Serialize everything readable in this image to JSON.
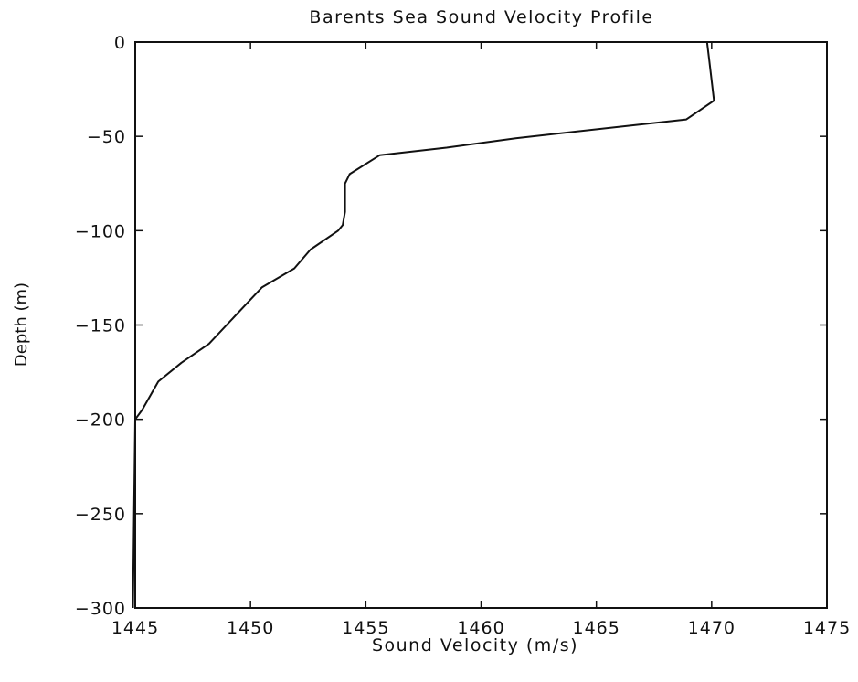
{
  "chart_data": {
    "type": "line",
    "title": "Barents Sea Sound Velocity Profile",
    "xlabel": "Sound Velocity (m/s)",
    "ylabel": "Depth (m)",
    "xlim": [
      1445,
      1475
    ],
    "ylim": [
      -300,
      0
    ],
    "x_ticks": [
      1445,
      1450,
      1455,
      1460,
      1465,
      1470,
      1475
    ],
    "y_ticks": [
      0,
      -50,
      -100,
      -150,
      -200,
      -250,
      -300
    ],
    "x_tick_labels": [
      "1445",
      "1450",
      "1455",
      "1460",
      "1465",
      "1470",
      "1475"
    ],
    "y_tick_labels": [
      "0",
      "−50",
      "−100",
      "−150",
      "−200",
      "−250",
      "−300"
    ],
    "grid": false,
    "series": [
      {
        "x": [
          1469.8,
          1469.9,
          1470.1,
          1468.9,
          1461.5,
          1458.5,
          1455.6,
          1454.3,
          1454.1,
          1454.1,
          1454.0,
          1453.8,
          1452.6,
          1451.9,
          1450.5,
          1448.2,
          1447.0,
          1446.0,
          1445.3,
          1445.0,
          1444.95,
          1444.9
        ],
        "y": [
          0,
          -10,
          -31,
          -41,
          -51,
          -56,
          -60,
          -70,
          -75,
          -90,
          -97,
          -100,
          -110,
          -120,
          -130,
          -160,
          -170,
          -180,
          -195,
          -200,
          -250,
          -300
        ]
      }
    ]
  }
}
